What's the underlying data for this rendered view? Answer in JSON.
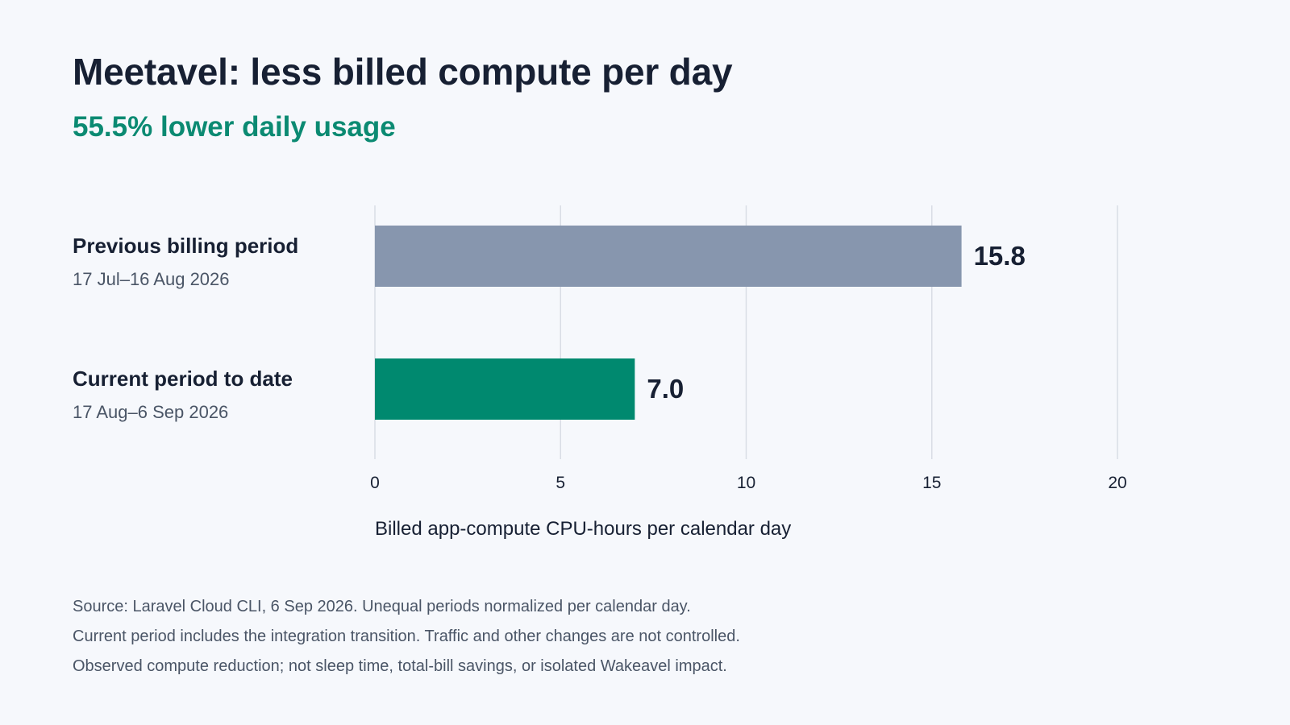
{
  "title": "Meetavel: less billed compute per day",
  "subtitle": "55.5% lower daily usage",
  "colors": {
    "previous_bar": "#8796ae",
    "current_bar": "#00896f",
    "accent": "#0b8a72",
    "grid": "#d9dde5",
    "text_dark": "#172033",
    "text_muted": "#4a5566"
  },
  "chart_data": {
    "type": "bar",
    "orientation": "horizontal",
    "categories": [
      "Previous billing period",
      "Current period to date"
    ],
    "category_sublabels": [
      "17 Jul–16 Aug 2026",
      "17 Aug–6 Sep 2026"
    ],
    "values": [
      15.8,
      7.0
    ],
    "value_labels": [
      "15.8",
      "7.0"
    ],
    "xlabel": "Billed app-compute CPU-hours per calendar day",
    "xlim": [
      0,
      20
    ],
    "xticks": [
      "0",
      "5",
      "10",
      "15",
      "20"
    ],
    "grid": true
  },
  "notes": [
    "Source: Laravel Cloud CLI, 6 Sep 2026. Unequal periods normalized per calendar day.",
    "Current period includes the integration transition. Traffic and other changes are not controlled.",
    "Observed compute reduction; not sleep time, total-bill savings, or isolated Wakeavel impact."
  ]
}
